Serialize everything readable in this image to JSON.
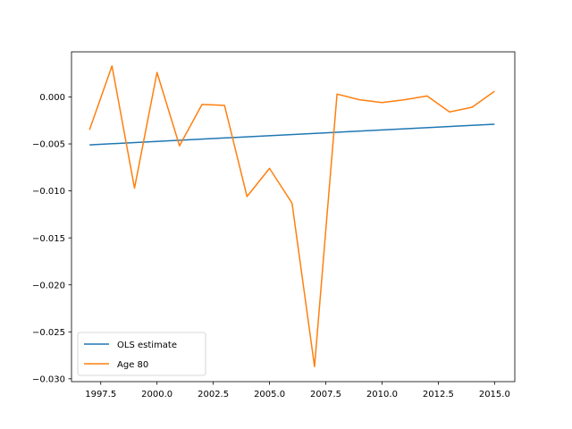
{
  "chart_data": {
    "type": "line",
    "title": "",
    "xlabel": "",
    "ylabel": "",
    "xlim": [
      1996.2,
      2015.9
    ],
    "ylim": [
      -0.0303,
      0.0048
    ],
    "x_ticks": [
      1997.5,
      2000.0,
      2002.5,
      2005.0,
      2007.5,
      2010.0,
      2012.5,
      2015.0
    ],
    "x_tick_labels": [
      "1997.5",
      "2000.0",
      "2002.5",
      "2005.0",
      "2007.5",
      "2010.0",
      "2012.5",
      "2015.0"
    ],
    "y_ticks": [
      0.0,
      -0.005,
      -0.01,
      -0.015,
      -0.02,
      -0.025,
      -0.03
    ],
    "y_tick_labels": [
      "0.000",
      "−0.005",
      "−0.010",
      "−0.015",
      "−0.020",
      "−0.025",
      "−0.030"
    ],
    "grid": false,
    "legend_position": "lower-left",
    "series": [
      {
        "name": "OLS estimate",
        "color": "#1f77b4",
        "x": [
          1997,
          2015
        ],
        "y": [
          -0.0051,
          -0.0029
        ]
      },
      {
        "name": "Age 80",
        "color": "#ff7f0e",
        "x": [
          1997,
          1998,
          1999,
          2000,
          2001,
          2002,
          2003,
          2004,
          2005,
          2006,
          2007,
          2008,
          2009,
          2010,
          2011,
          2012,
          2013,
          2014,
          2015
        ],
        "y": [
          -0.0035,
          0.0033,
          -0.0097,
          0.0026,
          -0.0052,
          -0.0008,
          -0.0009,
          -0.0106,
          -0.0076,
          -0.0113,
          -0.0287,
          0.0003,
          -0.0003,
          -0.0006,
          -0.0003,
          0.0001,
          -0.0016,
          -0.0011,
          0.0006
        ]
      }
    ]
  }
}
